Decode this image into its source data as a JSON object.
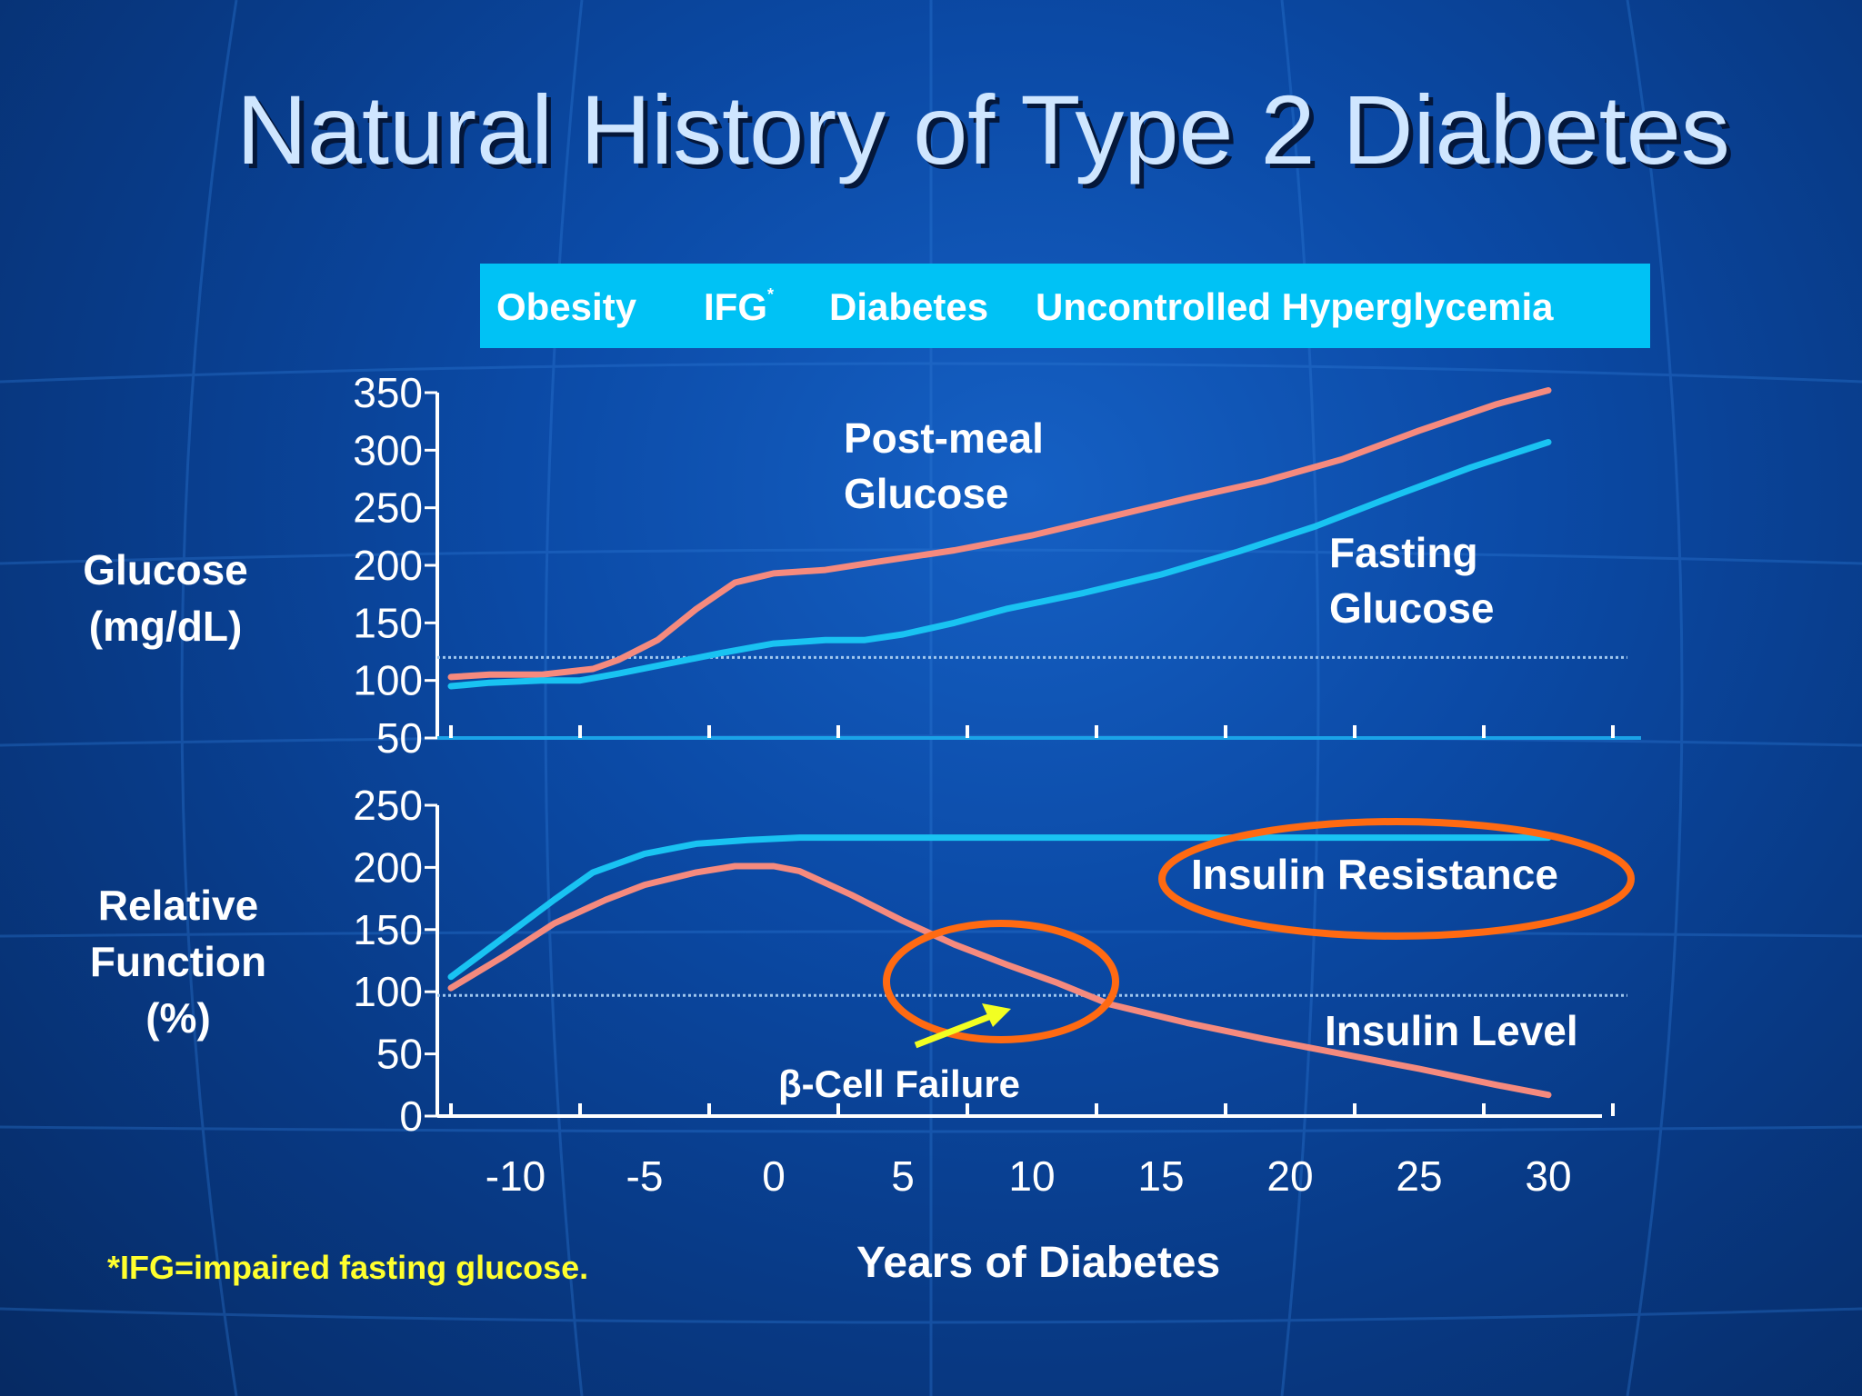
{
  "title": "Natural History of Type 2 Diabetes",
  "stages": {
    "obesity": "Obesity",
    "ifg": "IFG",
    "ifg_mark": "*",
    "diabetes": "Diabetes",
    "uncontrolled": "Uncontrolled Hyperglycemia"
  },
  "labels": {
    "glucose_axis_line1": "Glucose",
    "glucose_axis_line2": "(mg/dL)",
    "function_axis_line1": "Relative",
    "function_axis_line2": "Function",
    "function_axis_line3": "(%)",
    "post_meal_line1": "Post-meal",
    "post_meal_line2": "Glucose",
    "fasting_line1": "Fasting",
    "fasting_line2": "Glucose",
    "insulin_resistance": "Insulin Resistance",
    "insulin_level": "Insulin Level",
    "beta_cell_failure": "β-Cell Failure",
    "xlabel": "Years of Diabetes",
    "footnote": "*IFG=impaired fasting glucose."
  },
  "colors": {
    "post_meal": "#f58a7e",
    "fasting": "#19c3f2",
    "insulin_resistance": "#19c3f2",
    "insulin_level": "#f58a7e",
    "ellipse": "#ff6a12",
    "arrow": "#f2ff22",
    "stage_bar": "#00c2f5"
  },
  "chart_data": [
    {
      "type": "line",
      "panel": "glucose",
      "ylabel": "Glucose (mg/dL)",
      "xlim": [
        -15,
        35
      ],
      "ylim": [
        50,
        350
      ],
      "yticks": [
        50,
        100,
        150,
        200,
        250,
        300,
        350
      ],
      "reference_line": 120,
      "series": [
        {
          "name": "Post-meal Glucose",
          "x": [
            -12.5,
            -11,
            -9,
            -7,
            -6,
            -4.5,
            -3,
            -1.5,
            0,
            2,
            4,
            7,
            10,
            13,
            16,
            19,
            22,
            25,
            28,
            30
          ],
          "y": [
            103,
            105,
            105,
            110,
            118,
            135,
            162,
            185,
            193,
            196,
            203,
            213,
            226,
            242,
            258,
            273,
            292,
            317,
            340,
            352
          ]
        },
        {
          "name": "Fasting Glucose",
          "x": [
            -12.5,
            -11,
            -9,
            -7.5,
            -6,
            -4,
            -2,
            0,
            2,
            3.5,
            5,
            7,
            9,
            12,
            15,
            18,
            21,
            24,
            27,
            30
          ],
          "y": [
            95,
            98,
            100,
            100,
            106,
            115,
            124,
            132,
            135,
            135,
            140,
            150,
            162,
            176,
            192,
            212,
            234,
            260,
            285,
            307
          ]
        }
      ]
    },
    {
      "type": "line",
      "panel": "relative-function",
      "ylabel": "Relative Function (%)",
      "xlabel": "Years of Diabetes",
      "xlim": [
        -15,
        35
      ],
      "ylim": [
        0,
        250
      ],
      "yticks": [
        0,
        50,
        100,
        150,
        200,
        250
      ],
      "xticks": [
        -10,
        -5,
        0,
        5,
        10,
        15,
        20,
        25,
        30
      ],
      "reference_line": 97,
      "series": [
        {
          "name": "Insulin Resistance",
          "x": [
            -12.5,
            -10.5,
            -8.5,
            -7,
            -5,
            -3,
            -1,
            1,
            3,
            5,
            8,
            12,
            16,
            20,
            24,
            28,
            30
          ],
          "y": [
            112,
            143,
            174,
            196,
            211,
            219,
            222,
            224,
            224,
            224,
            224,
            224,
            224,
            224,
            224,
            224,
            224
          ]
        },
        {
          "name": "Insulin Level",
          "x": [
            -12.5,
            -10.5,
            -8.5,
            -6.5,
            -5,
            -3,
            -1.5,
            0,
            1,
            3,
            5,
            7,
            9,
            11,
            13,
            16,
            19,
            22,
            25,
            28,
            30
          ],
          "y": [
            103,
            128,
            155,
            174,
            186,
            196,
            201,
            201,
            197,
            178,
            157,
            138,
            122,
            107,
            90,
            75,
            62,
            50,
            38,
            25,
            17
          ]
        }
      ],
      "annotation": "β-Cell Failure"
    }
  ]
}
